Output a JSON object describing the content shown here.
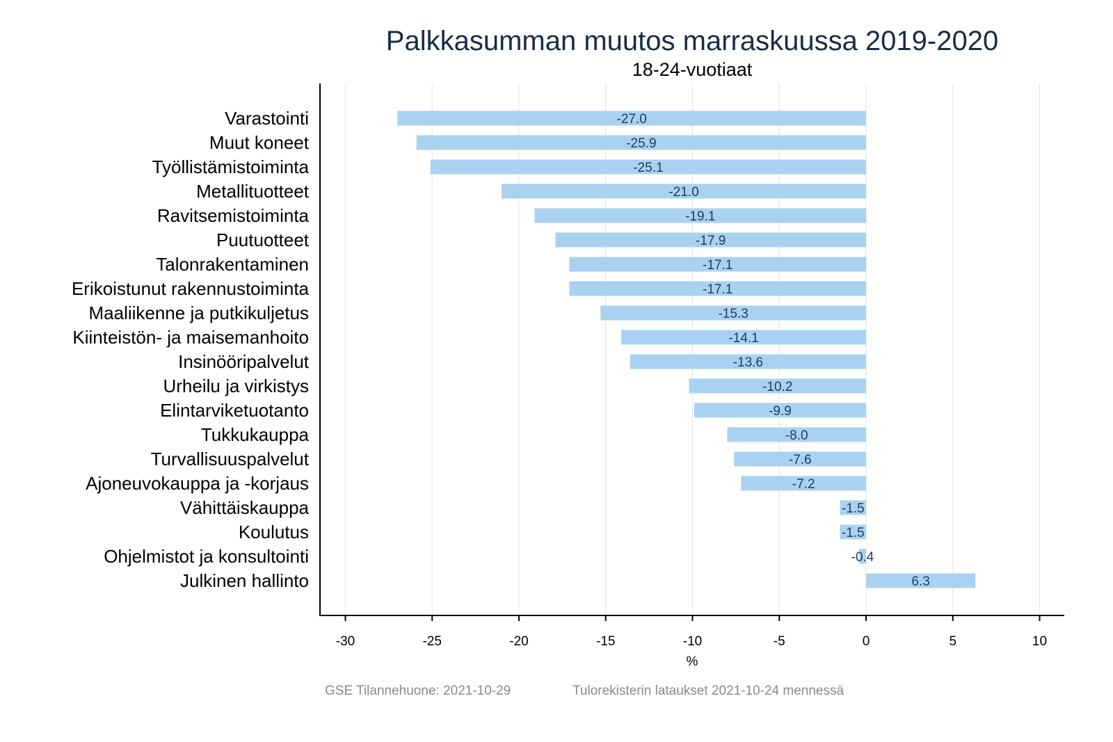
{
  "chart_data": {
    "type": "bar",
    "orientation": "horizontal",
    "title": "Palkkasumman muutos marraskuussa 2019-2020",
    "subtitle": "18-24-vuotiaat",
    "xlabel": "%",
    "ylabel": "",
    "xlim": [
      -31.5,
      11.5
    ],
    "xticks": [
      -30,
      -25,
      -20,
      -15,
      -10,
      -5,
      0,
      5,
      10
    ],
    "grid": true,
    "bar_color": "#a8d2f0",
    "categories": [
      "Varastointi",
      "Muut koneet",
      "Työllistämistoiminta",
      "Metallituotteet",
      "Ravitsemistoiminta",
      "Puutuotteet",
      "Talonrakentaminen",
      "Erikoistunut rakennustoiminta",
      "Maaliikenne ja putkikuljetus",
      "Kiinteistön- ja maisemanhoito",
      "Insinööripalvelut",
      "Urheilu ja virkistys",
      "Elintarviketuotanto",
      "Tukkukauppa",
      "Turvallisuuspalvelut",
      "Ajoneuvokauppa ja -korjaus",
      "Vähittäiskauppa",
      "Koulutus",
      "Ohjelmistot ja konsultointi",
      "Julkinen hallinto"
    ],
    "values": [
      -27.0,
      -25.9,
      -25.1,
      -21.0,
      -19.1,
      -17.9,
      -17.1,
      -17.1,
      -15.3,
      -14.1,
      -13.6,
      -10.2,
      -9.9,
      -8.0,
      -7.6,
      -7.2,
      -1.5,
      -1.5,
      -0.4,
      6.3
    ]
  },
  "footer": {
    "source": "GSE Tilannehuone: 2021-10-29",
    "note": "Tulorekisterin lataukset 2021-10-24 mennessä"
  }
}
